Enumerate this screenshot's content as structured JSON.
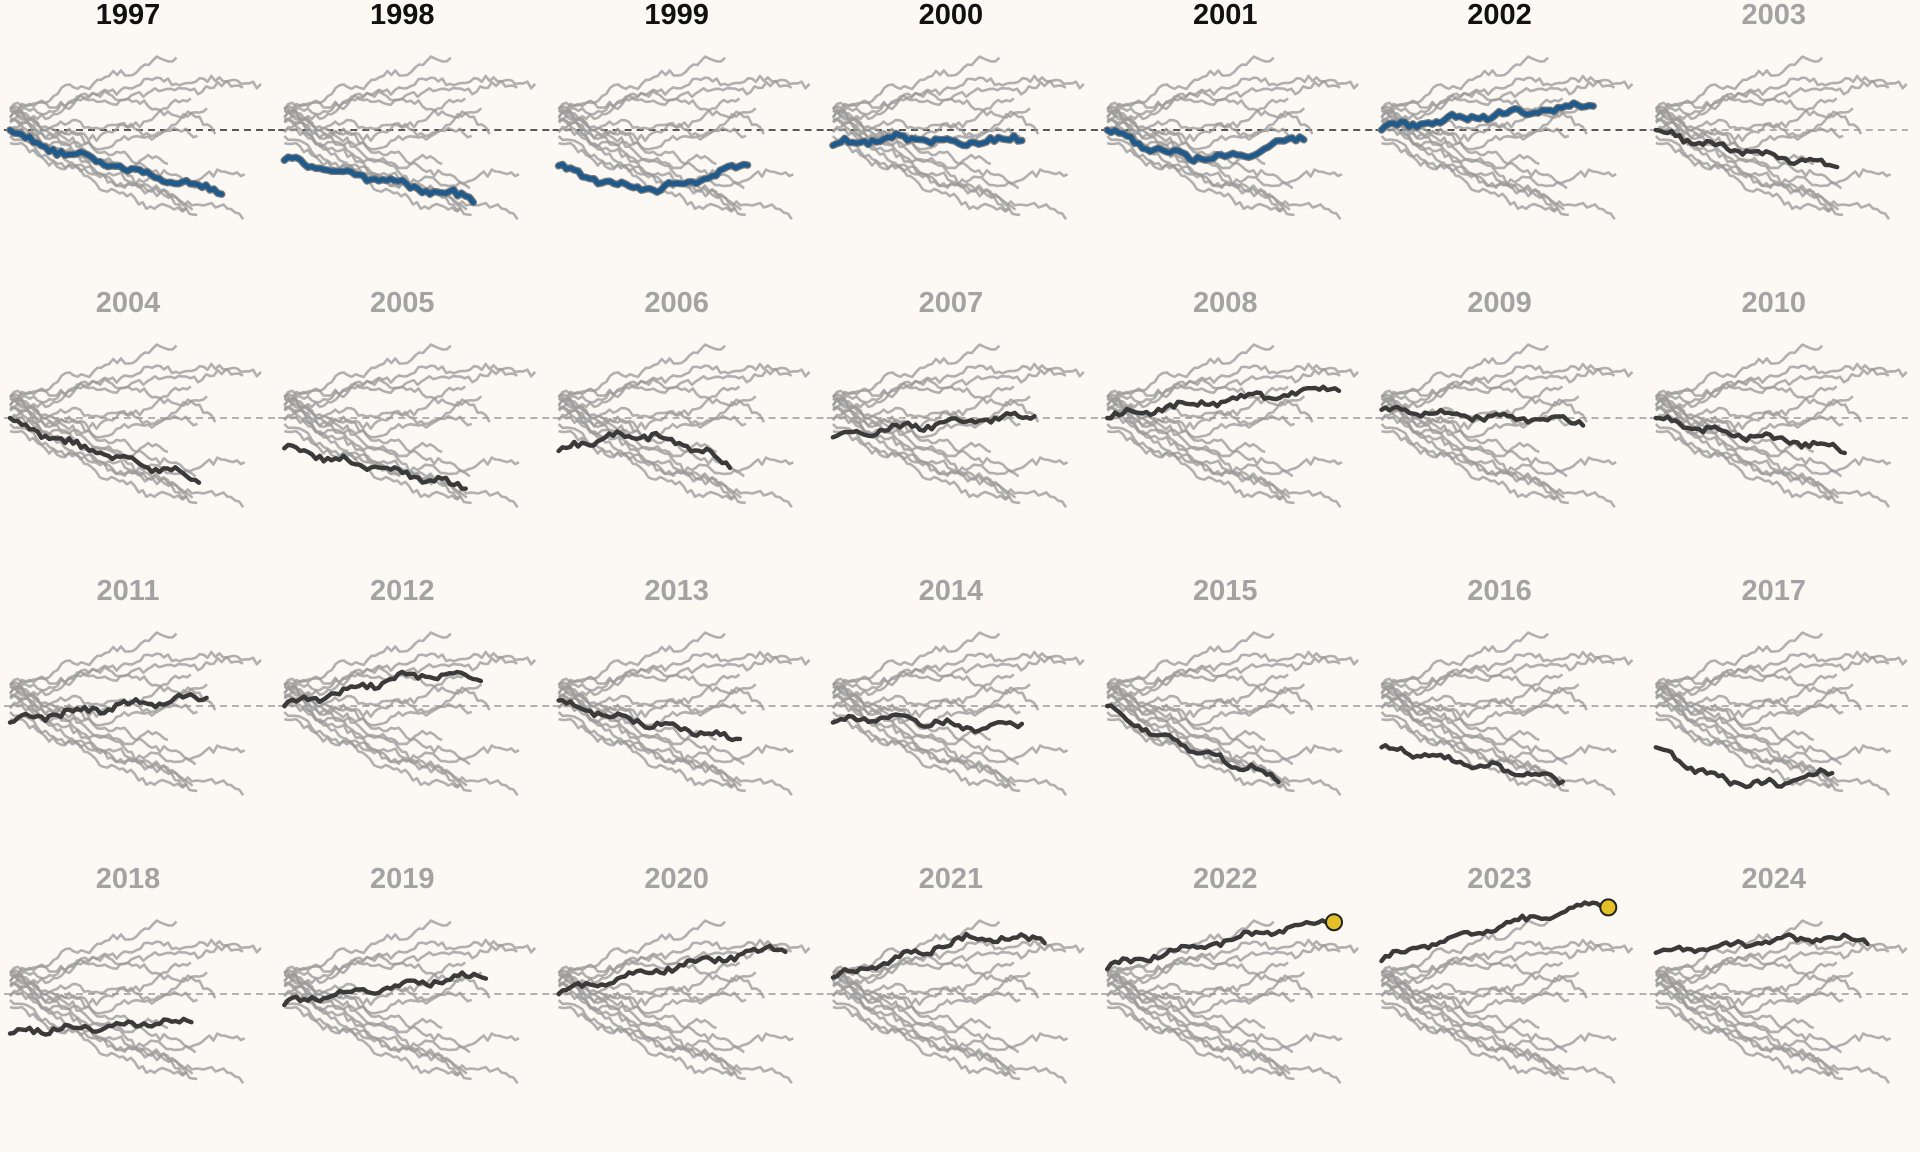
{
  "chart_data": {
    "type": "line",
    "layout": "small-multiples",
    "grid": false,
    "colors": {
      "background": "#fcf9f5",
      "title_highlight": "#111111",
      "title_muted": "#a3a3a3",
      "line_other": "#9b9b9b",
      "line_focus": "#3a3a3a",
      "line_focus_highlight": "#1f5a8c",
      "highlight_outline": "#7a7a7a",
      "reference_line": "#9a9a9a",
      "reference_line_highlight": "#222222",
      "end_marker": "#e3c028"
    },
    "x_range": [
      0,
      1
    ],
    "y_range": [
      -1.6,
      1.6
    ],
    "reference_y": 0,
    "panels": [
      {
        "year": "1997",
        "title_emphasis": true,
        "focus_highlight": true,
        "focus": {
          "end_x": 0.84,
          "end_y": -1.12,
          "shape": "decline",
          "seed": 11
        },
        "end_marker": false
      },
      {
        "year": "1998",
        "title_emphasis": true,
        "focus_highlight": true,
        "focus": {
          "start_y": -0.55,
          "end_x": 0.75,
          "end_y": -1.25,
          "shape": "linear",
          "seed": 12
        },
        "end_marker": false
      },
      {
        "year": "1999",
        "title_emphasis": true,
        "focus_highlight": true,
        "focus": {
          "start_y": -0.65,
          "end_x": 0.75,
          "end_y": -0.57,
          "shape": "dip",
          "seed": 13
        },
        "end_marker": false
      },
      {
        "year": "2000",
        "title_emphasis": true,
        "focus_highlight": true,
        "focus": {
          "start_y": -0.28,
          "end_x": 0.75,
          "end_y": -0.1,
          "shape": "flat",
          "seed": 14
        },
        "end_marker": false
      },
      {
        "year": "2001",
        "title_emphasis": true,
        "focus_highlight": true,
        "focus": {
          "end_x": 0.78,
          "end_y": -0.1,
          "shape": "dip",
          "seed": 15
        },
        "end_marker": false
      },
      {
        "year": "2002",
        "title_emphasis": true,
        "focus_highlight": true,
        "focus": {
          "end_x": 0.84,
          "end_y": 0.45,
          "shape": "rise",
          "seed": 16
        },
        "end_marker": false
      },
      {
        "year": "2003",
        "title_emphasis": false,
        "focus_highlight": false,
        "focus": {
          "end_x": 0.72,
          "end_y": -0.65,
          "shape": "decline",
          "seed": 17
        },
        "end_marker": false
      },
      {
        "year": "2004",
        "title_emphasis": false,
        "focus_highlight": false,
        "focus": {
          "end_x": 0.75,
          "end_y": -1.1,
          "shape": "decline",
          "seed": 21
        },
        "end_marker": false
      },
      {
        "year": "2005",
        "title_emphasis": false,
        "focus_highlight": false,
        "focus": {
          "start_y": -0.55,
          "end_x": 0.72,
          "end_y": -1.25,
          "shape": "linear",
          "seed": 22
        },
        "end_marker": false
      },
      {
        "year": "2006",
        "title_emphasis": false,
        "focus_highlight": false,
        "focus": {
          "start_y": -0.6,
          "end_x": 0.68,
          "end_y": -0.85,
          "shape": "bump",
          "seed": 23
        },
        "end_marker": false
      },
      {
        "year": "2007",
        "title_emphasis": false,
        "focus_highlight": false,
        "focus": {
          "start_y": -0.35,
          "end_x": 0.8,
          "end_y": 0.05,
          "shape": "rise",
          "seed": 24
        },
        "end_marker": false
      },
      {
        "year": "2008",
        "title_emphasis": false,
        "focus_highlight": false,
        "focus": {
          "end_x": 0.92,
          "end_y": 0.55,
          "shape": "rise",
          "seed": 25
        },
        "end_marker": false
      },
      {
        "year": "2009",
        "title_emphasis": false,
        "focus_highlight": false,
        "focus": {
          "start_y": 0.15,
          "end_x": 0.8,
          "end_y": -0.08,
          "shape": "linear",
          "seed": 26
        },
        "end_marker": false
      },
      {
        "year": "2010",
        "title_emphasis": false,
        "focus_highlight": false,
        "focus": {
          "end_x": 0.75,
          "end_y": -0.55,
          "shape": "decline",
          "seed": 27
        },
        "end_marker": false
      },
      {
        "year": "2011",
        "title_emphasis": false,
        "focus_highlight": false,
        "focus": {
          "start_y": -0.3,
          "end_x": 0.78,
          "end_y": 0.18,
          "shape": "rise",
          "seed": 31
        },
        "end_marker": false
      },
      {
        "year": "2012",
        "title_emphasis": false,
        "focus_highlight": false,
        "focus": {
          "end_x": 0.78,
          "end_y": 0.55,
          "shape": "steprise",
          "seed": 32
        },
        "end_marker": false
      },
      {
        "year": "2013",
        "title_emphasis": false,
        "focus_highlight": false,
        "focus": {
          "start_y": 0.1,
          "end_x": 0.72,
          "end_y": -0.6,
          "shape": "decline",
          "seed": 33
        },
        "end_marker": false
      },
      {
        "year": "2014",
        "title_emphasis": false,
        "focus_highlight": false,
        "focus": {
          "start_y": -0.3,
          "end_x": 0.75,
          "end_y": -0.3,
          "shape": "flat",
          "seed": 34
        },
        "end_marker": false
      },
      {
        "year": "2015",
        "title_emphasis": false,
        "focus_highlight": false,
        "focus": {
          "end_x": 0.68,
          "end_y": -1.3,
          "shape": "decline",
          "seed": 35
        },
        "end_marker": false
      },
      {
        "year": "2016",
        "title_emphasis": false,
        "focus_highlight": false,
        "focus": {
          "start_y": -0.75,
          "end_x": 0.72,
          "end_y": -1.35,
          "shape": "linear",
          "seed": 36
        },
        "end_marker": false
      },
      {
        "year": "2017",
        "title_emphasis": false,
        "focus_highlight": false,
        "focus": {
          "start_y": -0.75,
          "end_x": 0.7,
          "end_y": -1.15,
          "shape": "dip",
          "seed": 37
        },
        "end_marker": false
      },
      {
        "year": "2018",
        "title_emphasis": false,
        "focus_highlight": false,
        "focus": {
          "start_y": -0.72,
          "end_x": 0.72,
          "end_y": -0.48,
          "shape": "rise",
          "seed": 41
        },
        "end_marker": false
      },
      {
        "year": "2019",
        "title_emphasis": false,
        "focus_highlight": false,
        "focus": {
          "start_y": -0.2,
          "end_x": 0.8,
          "end_y": 0.35,
          "shape": "rise",
          "seed": 42
        },
        "end_marker": false
      },
      {
        "year": "2020",
        "title_emphasis": false,
        "focus_highlight": false,
        "focus": {
          "end_x": 0.9,
          "end_y": 0.85,
          "shape": "rise",
          "seed": 43
        },
        "end_marker": false
      },
      {
        "year": "2021",
        "title_emphasis": false,
        "focus_highlight": false,
        "focus": {
          "start_y": 0.3,
          "end_x": 0.84,
          "end_y": 1.0,
          "shape": "steprise",
          "seed": 44
        },
        "end_marker": false
      },
      {
        "year": "2022",
        "title_emphasis": false,
        "focus_highlight": false,
        "focus": {
          "start_y": 0.45,
          "end_x": 0.9,
          "end_y": 1.33,
          "shape": "rise",
          "seed": 45
        },
        "end_marker": true
      },
      {
        "year": "2023",
        "title_emphasis": false,
        "focus_highlight": false,
        "focus": {
          "start_y": 0.6,
          "end_x": 0.9,
          "end_y": 1.67,
          "shape": "rise",
          "seed": 46
        },
        "end_marker": true
      },
      {
        "year": "2024",
        "title_emphasis": false,
        "focus_highlight": false,
        "focus": {
          "start_y": 0.75,
          "end_x": 0.84,
          "end_y": 1.0,
          "shape": "steprise",
          "seed": 47
        },
        "end_marker": false
      }
    ]
  }
}
